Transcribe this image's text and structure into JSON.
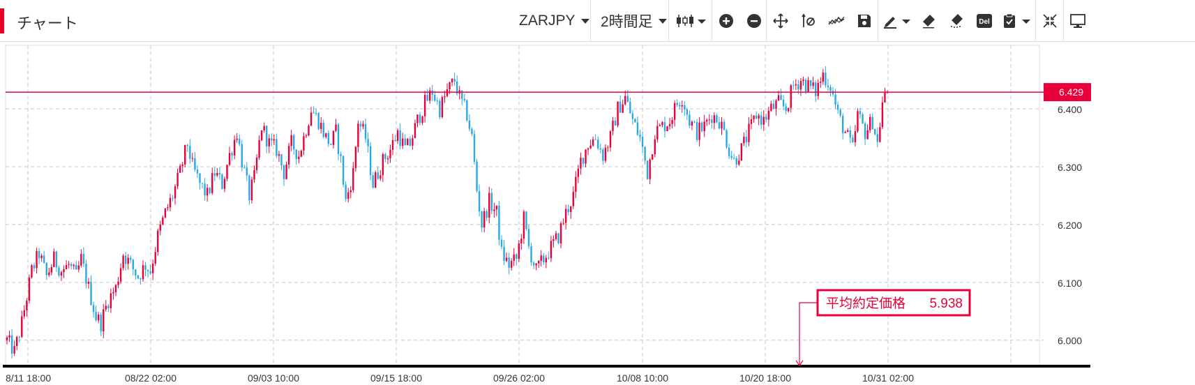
{
  "toolbar": {
    "title": "チャート",
    "symbol": "ZARJPY",
    "timeframe": "2時間足",
    "icons": [
      "candlestick-type-icon",
      "zoom-in-icon",
      "zoom-out-icon",
      "move-icon",
      "reset-axis-icon",
      "indicator-icon",
      "save-icon",
      "pen-icon",
      "eraser-icon",
      "eraser-all-icon",
      "delete-icon",
      "clipboard-icon",
      "shrink-icon",
      "fullscreen-icon"
    ],
    "del_label": "Del"
  },
  "colors": {
    "up": "#e8003a",
    "down": "#28a8e6",
    "price_line": "#e8003a",
    "grid": "#c8c8c8",
    "axis_line": "#000000"
  },
  "chart_data": {
    "type": "candlestick",
    "symbol": "ZARJPY",
    "timeframe": "2時間足",
    "x_tick_labels": [
      "8/11 18:00",
      "08/22 02:00",
      "09/03 10:00",
      "09/15 18:00",
      "09/26 02:00",
      "10/08 10:00",
      "10/20 18:00",
      "10/31 02:00"
    ],
    "y_tick_labels": [
      "6.000",
      "6.100",
      "6.200",
      "6.300",
      "6.400"
    ],
    "y_ticks": [
      6.0,
      6.1,
      6.2,
      6.3,
      6.4
    ],
    "ylim": [
      5.955,
      6.51
    ],
    "current_price": 6.429,
    "current_price_label": "6.429",
    "avg_price_label": "平均約定価格",
    "avg_price_value": "5.938",
    "avg_price": 5.938,
    "grid": true,
    "close_path": [
      [
        0,
        6.0
      ],
      [
        3,
        5.98
      ],
      [
        6,
        6.03
      ],
      [
        10,
        6.12
      ],
      [
        13,
        6.15
      ],
      [
        16,
        6.11
      ],
      [
        19,
        6.14
      ],
      [
        22,
        6.12
      ],
      [
        25,
        6.13
      ],
      [
        28,
        6.11
      ],
      [
        30,
        6.14
      ],
      [
        33,
        6.09
      ],
      [
        36,
        6.04
      ],
      [
        38,
        6.03
      ],
      [
        41,
        6.07
      ],
      [
        44,
        6.09
      ],
      [
        47,
        6.15
      ],
      [
        50,
        6.13
      ],
      [
        53,
        6.11
      ],
      [
        56,
        6.13
      ],
      [
        58,
        6.12
      ],
      [
        61,
        6.18
      ],
      [
        64,
        6.22
      ],
      [
        67,
        6.25
      ],
      [
        70,
        6.29
      ],
      [
        73,
        6.34
      ],
      [
        75,
        6.3
      ],
      [
        78,
        6.27
      ],
      [
        81,
        6.25
      ],
      [
        84,
        6.29
      ],
      [
        87,
        6.27
      ],
      [
        90,
        6.32
      ],
      [
        93,
        6.36
      ],
      [
        95,
        6.31
      ],
      [
        98,
        6.25
      ],
      [
        100,
        6.28
      ],
      [
        103,
        6.37
      ],
      [
        106,
        6.34
      ],
      [
        109,
        6.33
      ],
      [
        112,
        6.29
      ],
      [
        115,
        6.34
      ],
      [
        118,
        6.32
      ],
      [
        120,
        6.35
      ],
      [
        123,
        6.4
      ],
      [
        126,
        6.38
      ],
      [
        129,
        6.35
      ],
      [
        131,
        6.34
      ],
      [
        133,
        6.36
      ],
      [
        135,
        6.31
      ],
      [
        137,
        6.24
      ],
      [
        140,
        6.29
      ],
      [
        142,
        6.38
      ],
      [
        145,
        6.35
      ],
      [
        148,
        6.27
      ],
      [
        150,
        6.29
      ],
      [
        152,
        6.31
      ],
      [
        155,
        6.33
      ],
      [
        158,
        6.36
      ],
      [
        161,
        6.33
      ],
      [
        163,
        6.34
      ],
      [
        166,
        6.38
      ],
      [
        169,
        6.41
      ],
      [
        172,
        6.43
      ],
      [
        175,
        6.4
      ],
      [
        178,
        6.43
      ],
      [
        181,
        6.45
      ],
      [
        183,
        6.42
      ],
      [
        186,
        6.39
      ],
      [
        188,
        6.35
      ],
      [
        190,
        6.26
      ],
      [
        192,
        6.2
      ],
      [
        195,
        6.24
      ],
      [
        198,
        6.22
      ],
      [
        200,
        6.15
      ],
      [
        203,
        6.13
      ],
      [
        206,
        6.14
      ],
      [
        209,
        6.21
      ],
      [
        211,
        6.16
      ],
      [
        214,
        6.12
      ],
      [
        217,
        6.14
      ],
      [
        220,
        6.16
      ],
      [
        223,
        6.18
      ],
      [
        226,
        6.22
      ],
      [
        229,
        6.25
      ],
      [
        232,
        6.31
      ],
      [
        235,
        6.34
      ],
      [
        238,
        6.35
      ],
      [
        241,
        6.32
      ],
      [
        244,
        6.35
      ],
      [
        247,
        6.4
      ],
      [
        250,
        6.42
      ],
      [
        253,
        6.38
      ],
      [
        256,
        6.35
      ],
      [
        259,
        6.29
      ],
      [
        262,
        6.36
      ],
      [
        265,
        6.37
      ],
      [
        268,
        6.38
      ],
      [
        271,
        6.41
      ],
      [
        273,
        6.42
      ],
      [
        276,
        6.38
      ],
      [
        279,
        6.36
      ],
      [
        282,
        6.37
      ],
      [
        285,
        6.39
      ],
      [
        288,
        6.38
      ],
      [
        290,
        6.36
      ],
      [
        292,
        6.33
      ],
      [
        294,
        6.31
      ],
      [
        297,
        6.33
      ],
      [
        300,
        6.36
      ],
      [
        303,
        6.39
      ],
      [
        306,
        6.38
      ],
      [
        309,
        6.4
      ],
      [
        312,
        6.41
      ],
      [
        315,
        6.4
      ],
      [
        318,
        6.44
      ],
      [
        321,
        6.45
      ],
      [
        324,
        6.44
      ],
      [
        327,
        6.43
      ],
      [
        330,
        6.46
      ],
      [
        333,
        6.44
      ],
      [
        336,
        6.39
      ],
      [
        339,
        6.36
      ],
      [
        342,
        6.33
      ],
      [
        344,
        6.39
      ],
      [
        347,
        6.36
      ],
      [
        350,
        6.38
      ],
      [
        352,
        6.34
      ],
      [
        354,
        6.41
      ],
      [
        356,
        6.43
      ]
    ]
  }
}
